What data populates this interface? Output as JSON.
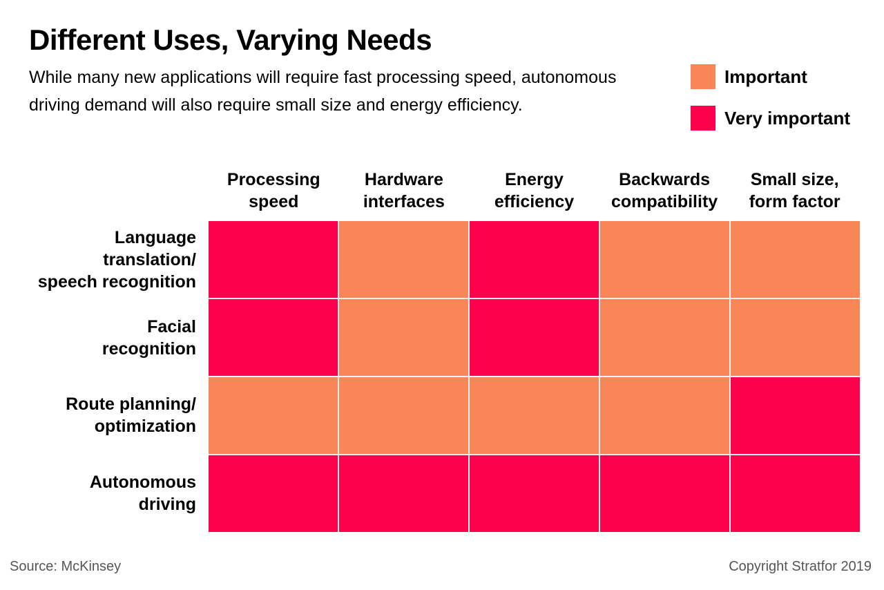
{
  "title": "Different Uses, Varying Needs",
  "subtitle": "While many new applications will require fast processing speed, autonomous driving demand will also require small size and energy efficiency.",
  "legend": [
    {
      "label": "Important",
      "color": "#f98657"
    },
    {
      "label": "Very important",
      "color": "#ff004c"
    }
  ],
  "footer": {
    "source": "Source: McKinsey",
    "copyright": "Copyright Stratfor 2019"
  },
  "chart_data": {
    "type": "heatmap",
    "columns": [
      "Processing\nspeed",
      "Hardware\ninterfaces",
      "Energy\nefficiency",
      "Backwards\ncompatibility",
      "Small size,\nform factor"
    ],
    "rows": [
      "Language\ntranslation/\nspeech recognition",
      "Facial\nrecognition",
      "Route planning/\noptimization",
      "Autonomous\ndriving"
    ],
    "values": [
      [
        "Very important",
        "Important",
        "Very important",
        "Important",
        "Important"
      ],
      [
        "Very important",
        "Important",
        "Very important",
        "Important",
        "Important"
      ],
      [
        "Important",
        "Important",
        "Important",
        "Important",
        "Very important"
      ],
      [
        "Very important",
        "Very important",
        "Very important",
        "Very important",
        "Very important"
      ]
    ],
    "colors": {
      "Important": "#f98657",
      "Very important": "#ff004c"
    }
  }
}
